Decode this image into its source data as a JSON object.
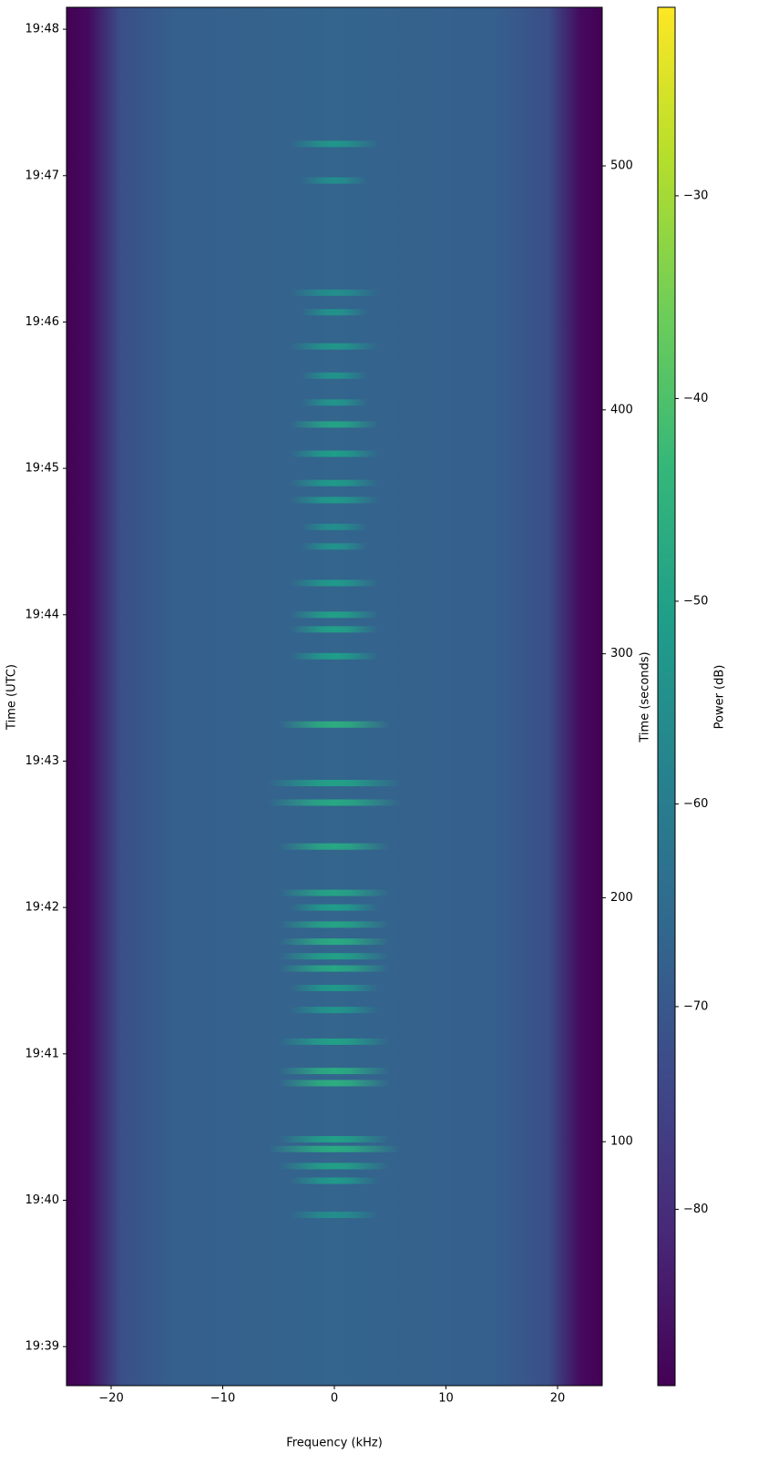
{
  "chart_data": {
    "type": "spectrogram",
    "xlabel": "Frequency (kHz)",
    "ylabel": "Time (UTC)",
    "y2label": "Time (seconds)",
    "colorbar_label": "Power (dB)",
    "xlim": [
      -24,
      24
    ],
    "xticks": [
      {
        "value": -20,
        "label": "−20"
      },
      {
        "value": -10,
        "label": "−10"
      },
      0,
      10,
      20
    ],
    "ylim": [
      0,
      565
    ],
    "yticks": [
      {
        "value": 16,
        "label": "19:39"
      },
      {
        "value": 76,
        "label": "19:40"
      },
      {
        "value": 136,
        "label": "19:41"
      },
      {
        "value": 196,
        "label": "19:42"
      },
      {
        "value": 256,
        "label": "19:43"
      },
      {
        "value": 316,
        "label": "19:44"
      },
      {
        "value": 376,
        "label": "19:45"
      },
      {
        "value": 436,
        "label": "19:46"
      },
      {
        "value": 496,
        "label": "19:47"
      },
      {
        "value": 556,
        "label": "19:48"
      }
    ],
    "y2lim": [
      0,
      565
    ],
    "y2ticks": [
      100,
      200,
      300,
      400,
      500
    ],
    "clim": [
      -88.7,
      -20.7
    ],
    "cticks": [
      {
        "value": -80,
        "label": "−80"
      },
      {
        "value": -70,
        "label": "−70"
      },
      {
        "value": -60,
        "label": "−60"
      },
      {
        "value": -50,
        "label": "−50"
      },
      {
        "value": -40,
        "label": "−40"
      },
      {
        "value": -30,
        "label": "−30"
      }
    ],
    "bursts": {
      "time": [
        70,
        84,
        90,
        97,
        101,
        124,
        129,
        141,
        154,
        163,
        171,
        176,
        182,
        189,
        196,
        202,
        221,
        239,
        247,
        271,
        299,
        310,
        316,
        329,
        344,
        352,
        363,
        370,
        382,
        394,
        403,
        414,
        426,
        440,
        448,
        494,
        509
      ],
      "halfwidth": [
        4,
        4,
        5,
        6,
        5,
        5,
        5,
        5,
        4,
        4,
        5,
        5,
        5,
        5,
        4,
        5,
        5,
        6,
        6,
        5,
        4,
        4,
        4,
        4,
        3,
        3,
        4,
        4,
        4,
        4,
        3,
        3,
        4,
        3,
        4,
        3,
        4
      ],
      "power": [
        -55,
        -52,
        -50,
        -47,
        -50,
        -46,
        -47,
        -50,
        -53,
        -52,
        -48,
        -50,
        -47,
        -49,
        -51,
        -49,
        -48,
        -48,
        -50,
        -46,
        -51,
        -50,
        -50,
        -52,
        -54,
        -55,
        -52,
        -52,
        -51,
        -49,
        -53,
        -54,
        -53,
        -54,
        -55,
        -55,
        -53
      ]
    }
  }
}
